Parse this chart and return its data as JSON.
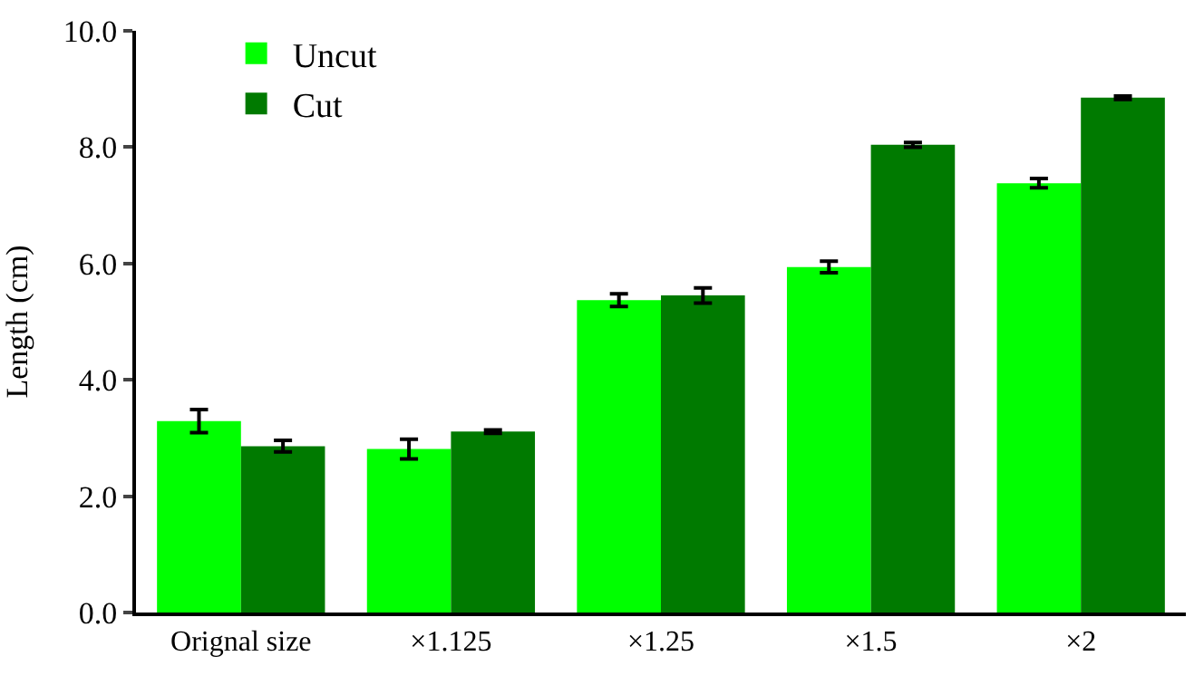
{
  "chart_data": {
    "type": "bar",
    "ylabel": "Length (cm)",
    "categories": [
      "Orignal size",
      "×1.125",
      "×1.25",
      "×1.5",
      "×2"
    ],
    "series": [
      {
        "name": "Uncut",
        "color": "#00ff00",
        "values": [
          3.29,
          2.81,
          5.37,
          5.94,
          7.38
        ],
        "errors": [
          0.2,
          0.17,
          0.11,
          0.1,
          0.08
        ]
      },
      {
        "name": "Cut",
        "color": "#007a00",
        "values": [
          2.86,
          3.11,
          5.45,
          8.04,
          8.85
        ],
        "errors": [
          0.1,
          0.03,
          0.13,
          0.04,
          0.03
        ]
      }
    ],
    "ylim": [
      0,
      10
    ],
    "yticks": [
      {
        "value": 0,
        "label": "0.0"
      },
      {
        "value": 2,
        "label": "2.0"
      },
      {
        "value": 4,
        "label": "4.0"
      },
      {
        "value": 6,
        "label": "6.0"
      },
      {
        "value": 8,
        "label": "8.0"
      },
      {
        "value": 10,
        "label": "10.0"
      }
    ],
    "legend": "top left"
  }
}
